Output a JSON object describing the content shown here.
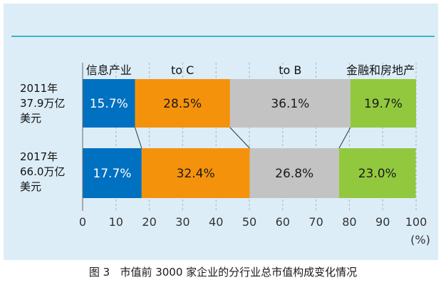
{
  "chart_data": {
    "type": "bar",
    "stacked": true,
    "orientation": "horizontal",
    "xlim": [
      0,
      100
    ],
    "xticks": [
      0,
      10,
      20,
      30,
      40,
      50,
      60,
      70,
      80,
      90,
      100
    ],
    "xunit": "(%)",
    "grid": true,
    "categories": [
      {
        "lines": [
          "2011年",
          "37.9万亿",
          "美元"
        ]
      },
      {
        "lines": [
          "2017年",
          "66.0万亿",
          "美元"
        ]
      }
    ],
    "series": [
      {
        "name": "信息产业",
        "color": "#0070c0",
        "values": [
          15.7,
          17.7
        ],
        "labels": [
          "15.7%",
          "17.7%"
        ]
      },
      {
        "name": "to C",
        "color": "#f5920c",
        "values": [
          28.5,
          32.4
        ],
        "labels": [
          "28.5%",
          "32.4%"
        ]
      },
      {
        "name": "to B",
        "color": "#c3c3c3",
        "values": [
          36.1,
          26.8
        ],
        "labels": [
          "36.1%",
          "26.8%"
        ]
      },
      {
        "name": "金融和房地产",
        "color": "#92c83e",
        "values": [
          19.7,
          23.0
        ],
        "labels": [
          "19.7%",
          "23.0%"
        ]
      }
    ],
    "legend_position": "top"
  },
  "caption": "图 3   市值前 3000 家企业的分行业总市值构成变化情况"
}
